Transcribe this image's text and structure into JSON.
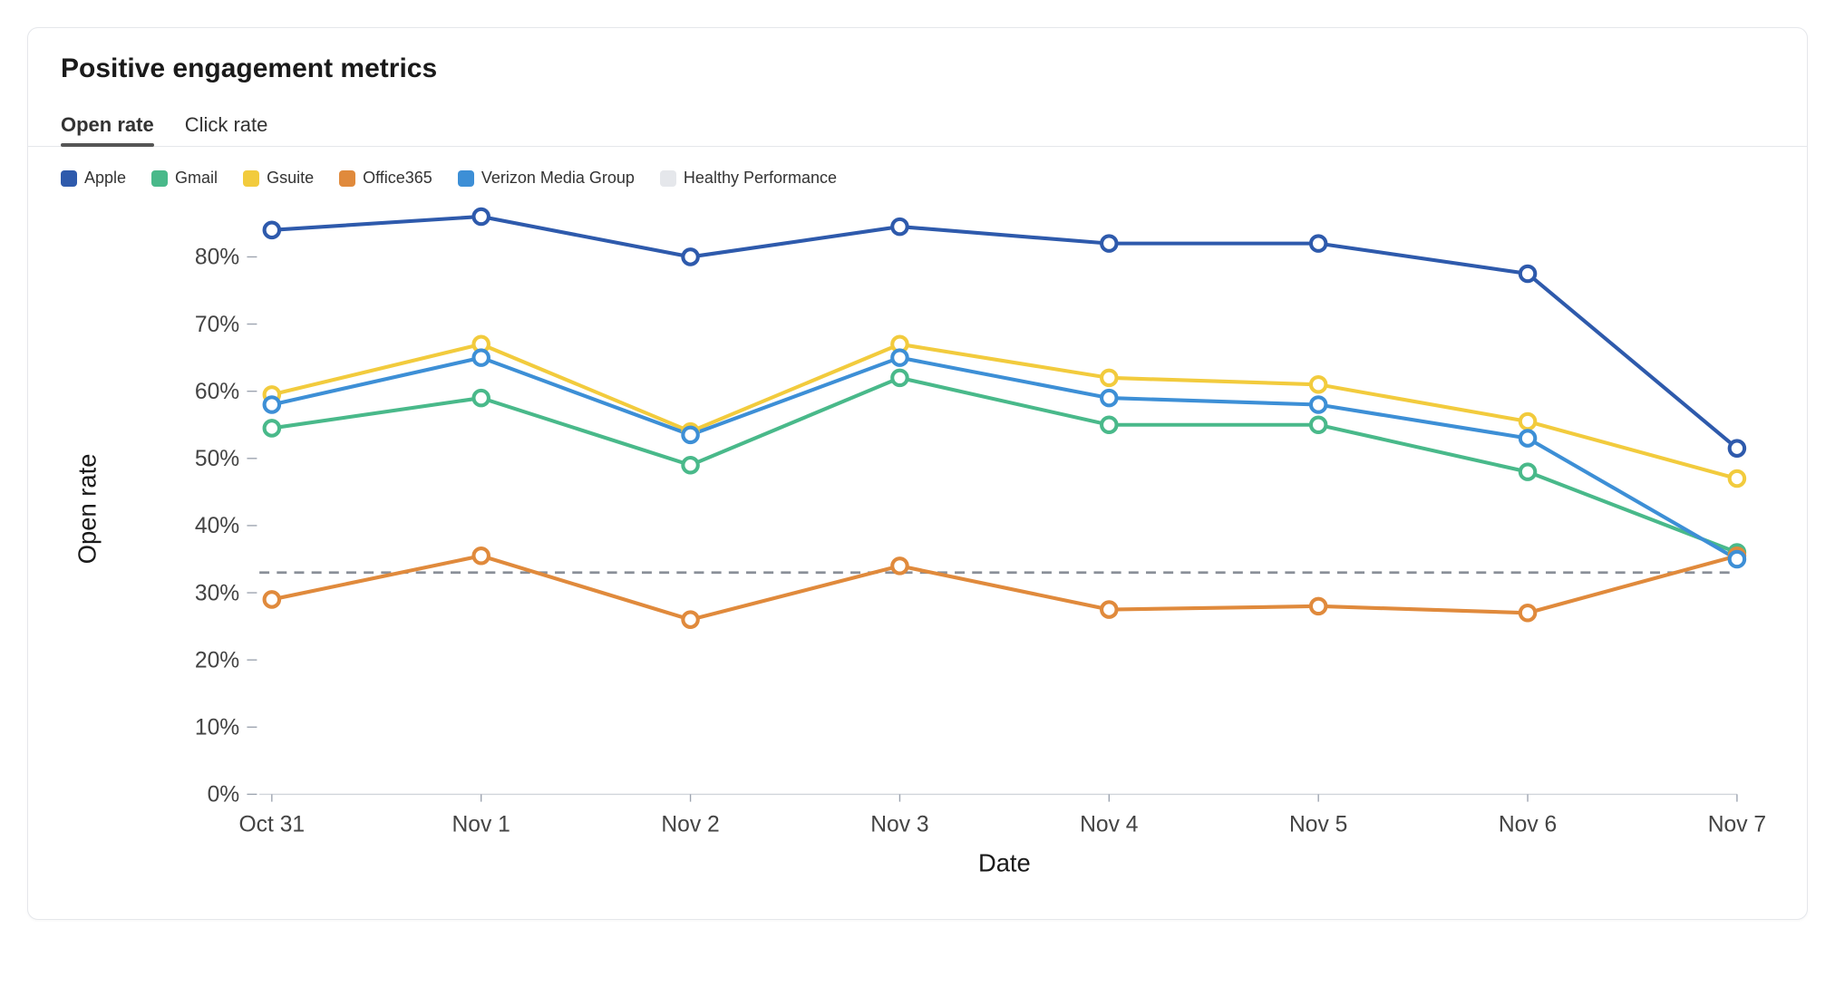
{
  "card": {
    "title": "Positive engagement metrics"
  },
  "tabs": {
    "active": 0,
    "items": [
      {
        "label": "Open rate"
      },
      {
        "label": "Click rate"
      }
    ]
  },
  "chart": {
    "type": "line",
    "x_label": "Date",
    "y_label": "Open rate",
    "categories": [
      "Oct 31",
      "Nov 1",
      "Nov 2",
      "Nov 3",
      "Nov 4",
      "Nov 5",
      "Nov 6",
      "Nov 7"
    ],
    "ylim": [
      0,
      85
    ],
    "ytick_step": 10,
    "ytick_suffix": "%",
    "axis_fontsize": 18,
    "line_width": 3,
    "marker_radius": 6,
    "marker_fill": "#ffffff",
    "background_color": "#ffffff",
    "axis_line_color": "#d1d5db",
    "tick_text_color": "#444444",
    "reference_lines": [
      {
        "value": 33,
        "color": "#8a8f98",
        "dash": "8 6",
        "label": "Healthy Performance"
      }
    ],
    "series": [
      {
        "name": "Apple",
        "color": "#2e5aac",
        "values": [
          84,
          86,
          80,
          84.5,
          82,
          82,
          77.5,
          51.5
        ]
      },
      {
        "name": "Gmail",
        "color": "#49b98a",
        "values": [
          54.5,
          59,
          49,
          62,
          55,
          55,
          48,
          36
        ]
      },
      {
        "name": "Gsuite",
        "color": "#f2cb3d",
        "values": [
          59.5,
          67,
          54,
          67,
          62,
          61,
          55.5,
          47
        ]
      },
      {
        "name": "Office365",
        "color": "#e08a3c",
        "values": [
          29,
          35.5,
          26,
          34,
          27.5,
          28,
          27,
          35.5
        ]
      },
      {
        "name": "Verizon Media Group",
        "color": "#3d8fd6",
        "values": [
          58,
          65,
          53.5,
          65,
          59,
          58,
          53,
          35
        ]
      }
    ],
    "legend_extra": [
      {
        "name": "Healthy Performance",
        "color": "#e5e7eb"
      }
    ]
  }
}
